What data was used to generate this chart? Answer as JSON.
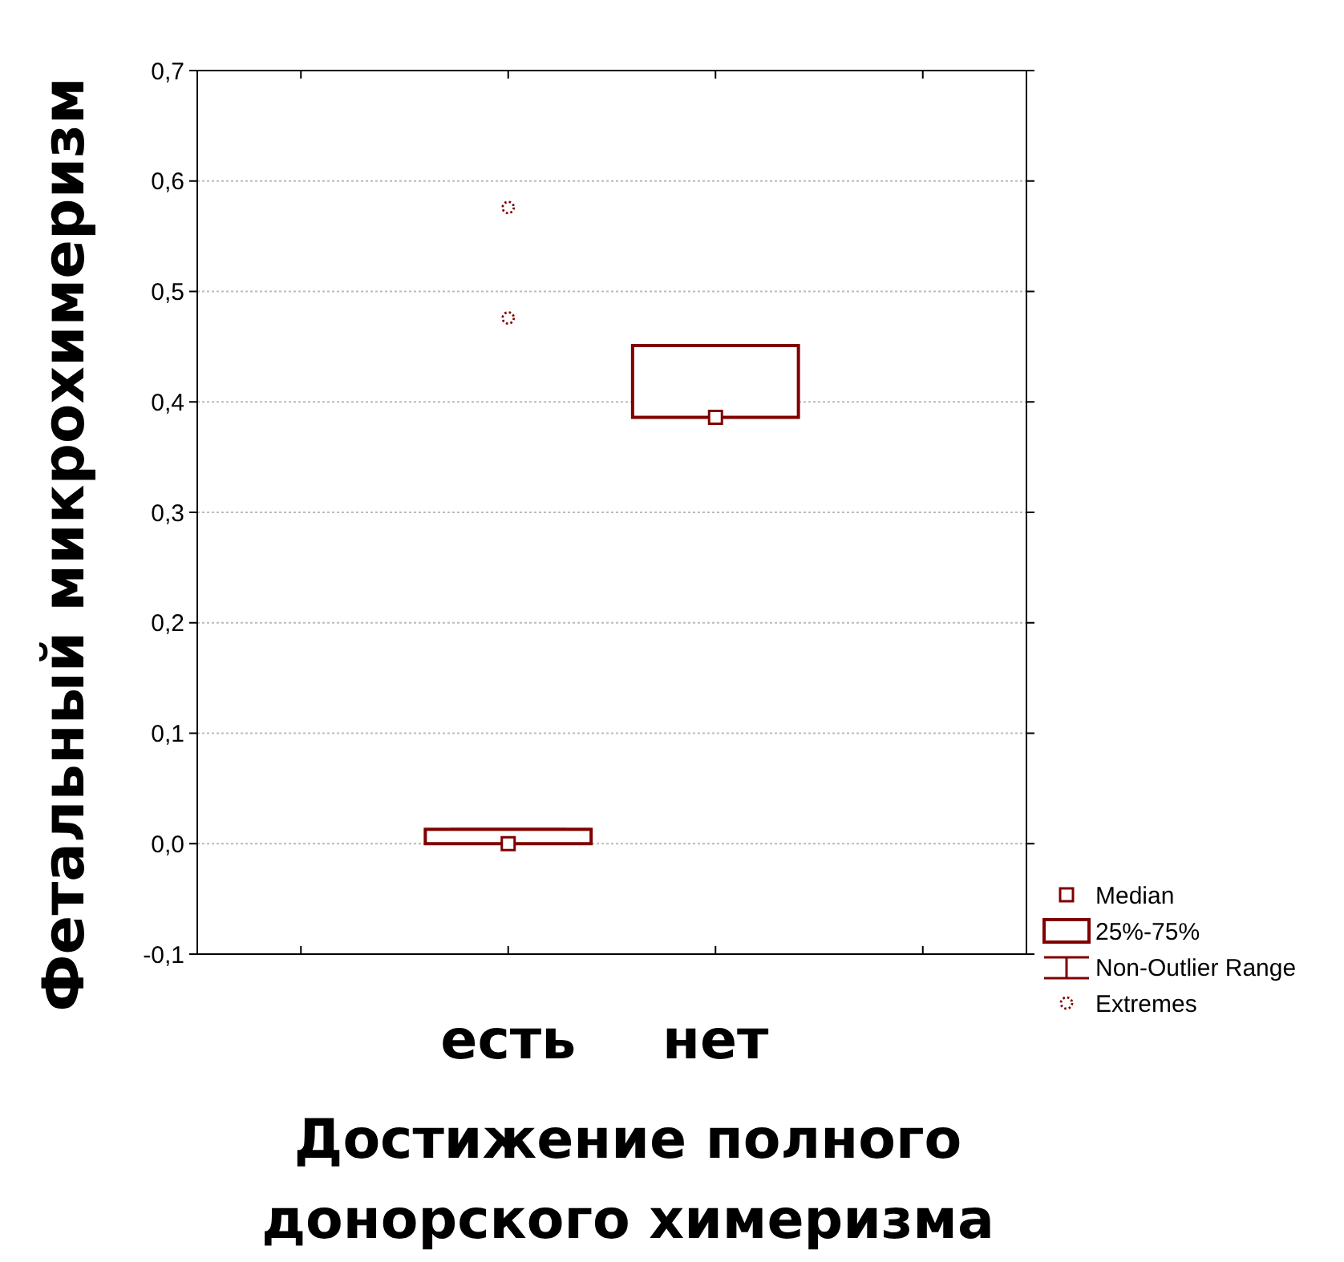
{
  "chart_data": {
    "type": "box",
    "categories": [
      null,
      "есть",
      "нет",
      null
    ],
    "series": [
      {
        "color": "#800000",
        "boxes": [
          null,
          {
            "low": 0.0,
            "q1": 0.0,
            "median": 0.0,
            "q3": 0.013,
            "high": 0.013,
            "outliers": [
              0.476,
              0.576
            ]
          },
          {
            "low": 0.386,
            "q1": 0.386,
            "median": 0.386,
            "q3": 0.451,
            "high": 0.451
          },
          null
        ]
      }
    ],
    "xlabel": "Достижение полного\nдонорского химеризма",
    "ylabel": "Фетальный  микрохимеризм",
    "ylim": [
      -0.1,
      0.7
    ],
    "yticks": [
      {
        "value": -0.1,
        "label": "-0,1"
      },
      {
        "value": 0,
        "label": "0,0"
      },
      {
        "value": 0.1,
        "label": "0,1"
      },
      {
        "value": 0.2,
        "label": "0,2"
      },
      {
        "value": 0.3,
        "label": "0,3"
      },
      {
        "value": 0.4,
        "label": "0,4"
      },
      {
        "value": 0.5,
        "label": "0,5"
      },
      {
        "value": 0.6,
        "label": "0,6"
      },
      {
        "value": 0.7,
        "label": "0,7"
      }
    ],
    "grid": "y",
    "annotations": [
      "Median",
      "25%-75%",
      "Non-Outlier Range",
      "Extremes"
    ]
  }
}
